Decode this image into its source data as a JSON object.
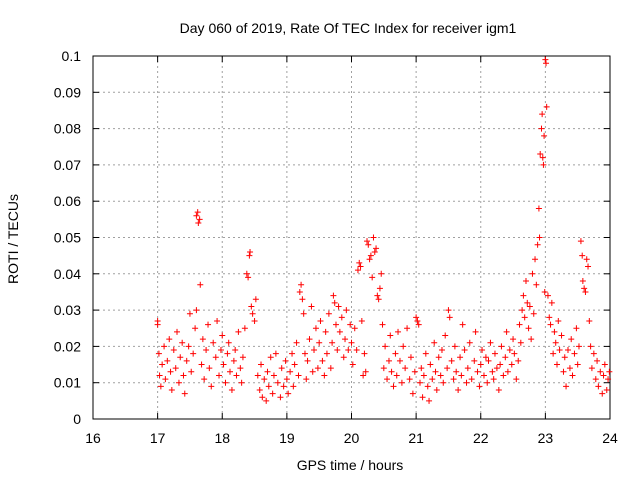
{
  "chart_data": {
    "type": "scatter",
    "title": "Day 060 of 2019, Rate Of TEC Index for receiver igm1",
    "xlabel": "GPS time / hours",
    "ylabel": "ROTI / TECUs",
    "xlim": [
      16,
      24
    ],
    "ylim": [
      0,
      0.1
    ],
    "x_ticks": [
      16,
      17,
      18,
      19,
      20,
      21,
      22,
      23,
      24
    ],
    "y_ticks": [
      0,
      0.01,
      0.02,
      0.03,
      0.04,
      0.05,
      0.06,
      0.07,
      0.08,
      0.09,
      0.1
    ],
    "x_tick_labels": [
      "16",
      "17",
      "18",
      "19",
      "20",
      "21",
      "22",
      "23",
      "24"
    ],
    "y_tick_labels": [
      "0",
      "0.01",
      "0.02",
      "0.03",
      "0.04",
      "0.05",
      "0.06",
      "0.07",
      "0.08",
      "0.09",
      "0.1"
    ],
    "grid": true,
    "marker": "+",
    "color": "#ff0000",
    "series": [
      {
        "name": "ROTI",
        "points": [
          [
            17.0,
            0.027
          ],
          [
            17.0,
            0.026
          ],
          [
            17.02,
            0.018
          ],
          [
            17.03,
            0.012
          ],
          [
            17.05,
            0.009
          ],
          [
            17.07,
            0.015
          ],
          [
            17.1,
            0.02
          ],
          [
            17.12,
            0.011
          ],
          [
            17.15,
            0.016
          ],
          [
            17.18,
            0.022
          ],
          [
            17.2,
            0.013
          ],
          [
            17.22,
            0.008
          ],
          [
            17.25,
            0.019
          ],
          [
            17.28,
            0.014
          ],
          [
            17.3,
            0.024
          ],
          [
            17.33,
            0.01
          ],
          [
            17.35,
            0.017
          ],
          [
            17.38,
            0.021
          ],
          [
            17.4,
            0.012
          ],
          [
            17.42,
            0.007
          ],
          [
            17.45,
            0.016
          ],
          [
            17.48,
            0.02
          ],
          [
            17.5,
            0.029
          ],
          [
            17.52,
            0.013
          ],
          [
            17.55,
            0.018
          ],
          [
            17.58,
            0.025
          ],
          [
            17.6,
            0.03
          ],
          [
            17.6,
            0.056
          ],
          [
            17.62,
            0.057
          ],
          [
            17.63,
            0.054
          ],
          [
            17.65,
            0.055
          ],
          [
            17.66,
            0.037
          ],
          [
            17.68,
            0.015
          ],
          [
            17.7,
            0.022
          ],
          [
            17.72,
            0.011
          ],
          [
            17.75,
            0.019
          ],
          [
            17.78,
            0.026
          ],
          [
            17.8,
            0.014
          ],
          [
            17.83,
            0.009
          ],
          [
            17.86,
            0.021
          ],
          [
            17.9,
            0.017
          ],
          [
            17.92,
            0.027
          ],
          [
            17.95,
            0.012
          ],
          [
            17.98,
            0.019
          ],
          [
            18.0,
            0.023
          ],
          [
            18.02,
            0.015
          ],
          [
            18.05,
            0.01
          ],
          [
            18.08,
            0.018
          ],
          [
            18.1,
            0.021
          ],
          [
            18.12,
            0.013
          ],
          [
            18.15,
            0.008
          ],
          [
            18.18,
            0.016
          ],
          [
            18.2,
            0.019
          ],
          [
            18.22,
            0.012
          ],
          [
            18.25,
            0.024
          ],
          [
            18.28,
            0.014
          ],
          [
            18.3,
            0.01
          ],
          [
            18.32,
            0.017
          ],
          [
            18.35,
            0.025
          ],
          [
            18.38,
            0.04
          ],
          [
            18.4,
            0.039
          ],
          [
            18.42,
            0.045
          ],
          [
            18.43,
            0.046
          ],
          [
            18.45,
            0.031
          ],
          [
            18.47,
            0.029
          ],
          [
            18.5,
            0.027
          ],
          [
            18.52,
            0.033
          ],
          [
            18.55,
            0.012
          ],
          [
            18.58,
            0.008
          ],
          [
            18.6,
            0.015
          ],
          [
            18.62,
            0.006
          ],
          [
            18.65,
            0.011
          ],
          [
            18.68,
            0.005
          ],
          [
            18.7,
            0.013
          ],
          [
            18.72,
            0.009
          ],
          [
            18.75,
            0.017
          ],
          [
            18.78,
            0.007
          ],
          [
            18.8,
            0.012
          ],
          [
            18.83,
            0.018
          ],
          [
            18.86,
            0.01
          ],
          [
            18.9,
            0.006
          ],
          [
            18.92,
            0.014
          ],
          [
            18.95,
            0.009
          ],
          [
            18.98,
            0.016
          ],
          [
            19.0,
            0.011
          ],
          [
            19.02,
            0.007
          ],
          [
            19.05,
            0.013
          ],
          [
            19.08,
            0.018
          ],
          [
            19.1,
            0.009
          ],
          [
            19.12,
            0.015
          ],
          [
            19.15,
            0.021
          ],
          [
            19.18,
            0.012
          ],
          [
            19.2,
            0.035
          ],
          [
            19.22,
            0.037
          ],
          [
            19.24,
            0.033
          ],
          [
            19.26,
            0.029
          ],
          [
            19.28,
            0.018
          ],
          [
            19.3,
            0.011
          ],
          [
            19.32,
            0.016
          ],
          [
            19.35,
            0.022
          ],
          [
            19.38,
            0.031
          ],
          [
            19.4,
            0.013
          ],
          [
            19.42,
            0.019
          ],
          [
            19.45,
            0.025
          ],
          [
            19.48,
            0.014
          ],
          [
            19.5,
            0.021
          ],
          [
            19.52,
            0.027
          ],
          [
            19.55,
            0.016
          ],
          [
            19.58,
            0.012
          ],
          [
            19.6,
            0.024
          ],
          [
            19.62,
            0.018
          ],
          [
            19.65,
            0.029
          ],
          [
            19.68,
            0.014
          ],
          [
            19.7,
            0.021
          ],
          [
            19.72,
            0.034
          ],
          [
            19.74,
            0.032
          ],
          [
            19.76,
            0.026
          ],
          [
            19.78,
            0.019
          ],
          [
            19.8,
            0.031
          ],
          [
            19.82,
            0.024
          ],
          [
            19.85,
            0.028
          ],
          [
            19.88,
            0.017
          ],
          [
            19.9,
            0.022
          ],
          [
            19.92,
            0.03
          ],
          [
            19.95,
            0.019
          ],
          [
            19.98,
            0.026
          ],
          [
            20.0,
            0.021
          ],
          [
            20.02,
            0.015
          ],
          [
            20.05,
            0.025
          ],
          [
            20.08,
            0.019
          ],
          [
            20.1,
            0.041
          ],
          [
            20.12,
            0.043
          ],
          [
            20.14,
            0.042
          ],
          [
            20.16,
            0.027
          ],
          [
            20.18,
            0.012
          ],
          [
            20.2,
            0.018
          ],
          [
            20.22,
            0.013
          ],
          [
            20.24,
            0.049
          ],
          [
            20.26,
            0.048
          ],
          [
            20.28,
            0.044
          ],
          [
            20.3,
            0.045
          ],
          [
            20.32,
            0.039
          ],
          [
            20.34,
            0.05
          ],
          [
            20.36,
            0.046
          ],
          [
            20.38,
            0.047
          ],
          [
            20.4,
            0.034
          ],
          [
            20.42,
            0.033
          ],
          [
            20.44,
            0.036
          ],
          [
            20.46,
            0.04
          ],
          [
            20.48,
            0.026
          ],
          [
            20.5,
            0.014
          ],
          [
            20.52,
            0.02
          ],
          [
            20.55,
            0.011
          ],
          [
            20.58,
            0.016
          ],
          [
            20.6,
            0.023
          ],
          [
            20.62,
            0.013
          ],
          [
            20.65,
            0.009
          ],
          [
            20.68,
            0.018
          ],
          [
            20.7,
            0.012
          ],
          [
            20.72,
            0.024
          ],
          [
            20.75,
            0.016
          ],
          [
            20.78,
            0.01
          ],
          [
            20.8,
            0.02
          ],
          [
            20.83,
            0.014
          ],
          [
            20.86,
            0.025
          ],
          [
            20.9,
            0.011
          ],
          [
            20.92,
            0.017
          ],
          [
            20.95,
            0.007
          ],
          [
            20.98,
            0.013
          ],
          [
            21.0,
            0.028
          ],
          [
            21.02,
            0.027
          ],
          [
            21.04,
            0.026
          ],
          [
            21.06,
            0.01
          ],
          [
            21.08,
            0.014
          ],
          [
            21.1,
            0.006
          ],
          [
            21.12,
            0.012
          ],
          [
            21.15,
            0.018
          ],
          [
            21.18,
            0.009
          ],
          [
            21.2,
            0.005
          ],
          [
            21.22,
            0.015
          ],
          [
            21.25,
            0.011
          ],
          [
            21.28,
            0.021
          ],
          [
            21.3,
            0.013
          ],
          [
            21.32,
            0.008
          ],
          [
            21.35,
            0.017
          ],
          [
            21.38,
            0.012
          ],
          [
            21.4,
            0.019
          ],
          [
            21.42,
            0.01
          ],
          [
            21.45,
            0.023
          ],
          [
            21.48,
            0.014
          ],
          [
            21.5,
            0.03
          ],
          [
            21.52,
            0.028
          ],
          [
            21.55,
            0.016
          ],
          [
            21.58,
            0.011
          ],
          [
            21.6,
            0.02
          ],
          [
            21.62,
            0.013
          ],
          [
            21.65,
            0.008
          ],
          [
            21.68,
            0.017
          ],
          [
            21.7,
            0.012
          ],
          [
            21.72,
            0.026
          ],
          [
            21.75,
            0.019
          ],
          [
            21.78,
            0.01
          ],
          [
            21.8,
            0.014
          ],
          [
            21.83,
            0.021
          ],
          [
            21.86,
            0.011
          ],
          [
            21.9,
            0.016
          ],
          [
            21.92,
            0.024
          ],
          [
            21.95,
            0.013
          ],
          [
            21.98,
            0.009
          ],
          [
            22.0,
            0.015
          ],
          [
            22.02,
            0.019
          ],
          [
            22.05,
            0.012
          ],
          [
            22.08,
            0.017
          ],
          [
            22.1,
            0.01
          ],
          [
            22.12,
            0.016
          ],
          [
            22.15,
            0.021
          ],
          [
            22.18,
            0.013
          ],
          [
            22.2,
            0.011
          ],
          [
            22.22,
            0.018
          ],
          [
            22.25,
            0.014
          ],
          [
            22.28,
            0.008
          ],
          [
            22.3,
            0.015
          ],
          [
            22.32,
            0.02
          ],
          [
            22.35,
            0.012
          ],
          [
            22.38,
            0.017
          ],
          [
            22.4,
            0.024
          ],
          [
            22.42,
            0.013
          ],
          [
            22.45,
            0.019
          ],
          [
            22.48,
            0.015
          ],
          [
            22.5,
            0.022
          ],
          [
            22.52,
            0.018
          ],
          [
            22.55,
            0.011
          ],
          [
            22.58,
            0.016
          ],
          [
            22.6,
            0.026
          ],
          [
            22.62,
            0.021
          ],
          [
            22.64,
            0.03
          ],
          [
            22.66,
            0.034
          ],
          [
            22.68,
            0.028
          ],
          [
            22.7,
            0.038
          ],
          [
            22.72,
            0.032
          ],
          [
            22.74,
            0.025
          ],
          [
            22.76,
            0.031
          ],
          [
            22.78,
            0.022
          ],
          [
            22.8,
            0.04
          ],
          [
            22.82,
            0.029
          ],
          [
            22.84,
            0.044
          ],
          [
            22.86,
            0.037
          ],
          [
            22.88,
            0.048
          ],
          [
            22.9,
            0.058
          ],
          [
            22.91,
            0.05
          ],
          [
            22.92,
            0.073
          ],
          [
            22.94,
            0.08
          ],
          [
            22.95,
            0.084
          ],
          [
            22.96,
            0.072
          ],
          [
            22.97,
            0.07
          ],
          [
            22.98,
            0.078
          ],
          [
            22.99,
            0.035
          ],
          [
            23.0,
            0.099
          ],
          [
            23.01,
            0.098
          ],
          [
            23.02,
            0.086
          ],
          [
            23.04,
            0.034
          ],
          [
            23.06,
            0.028
          ],
          [
            23.08,
            0.026
          ],
          [
            23.1,
            0.032
          ],
          [
            23.12,
            0.018
          ],
          [
            23.14,
            0.024
          ],
          [
            23.16,
            0.021
          ],
          [
            23.18,
            0.015
          ],
          [
            23.2,
            0.027
          ],
          [
            23.22,
            0.019
          ],
          [
            23.25,
            0.023
          ],
          [
            23.28,
            0.013
          ],
          [
            23.3,
            0.017
          ],
          [
            23.32,
            0.009
          ],
          [
            23.35,
            0.019
          ],
          [
            23.38,
            0.014
          ],
          [
            23.4,
            0.022
          ],
          [
            23.42,
            0.012
          ],
          [
            23.45,
            0.018
          ],
          [
            23.48,
            0.025
          ],
          [
            23.5,
            0.015
          ],
          [
            23.52,
            0.02
          ],
          [
            23.55,
            0.049
          ],
          [
            23.57,
            0.045
          ],
          [
            23.58,
            0.038
          ],
          [
            23.6,
            0.036
          ],
          [
            23.62,
            0.035
          ],
          [
            23.64,
            0.044
          ],
          [
            23.66,
            0.042
          ],
          [
            23.68,
            0.027
          ],
          [
            23.7,
            0.02
          ],
          [
            23.72,
            0.014
          ],
          [
            23.75,
            0.018
          ],
          [
            23.78,
            0.011
          ],
          [
            23.8,
            0.016
          ],
          [
            23.82,
            0.009
          ],
          [
            23.85,
            0.013
          ],
          [
            23.88,
            0.007
          ],
          [
            23.9,
            0.012
          ],
          [
            23.92,
            0.015
          ],
          [
            23.95,
            0.008
          ],
          [
            23.97,
            0.011
          ],
          [
            23.99,
            0.013
          ]
        ]
      }
    ]
  }
}
